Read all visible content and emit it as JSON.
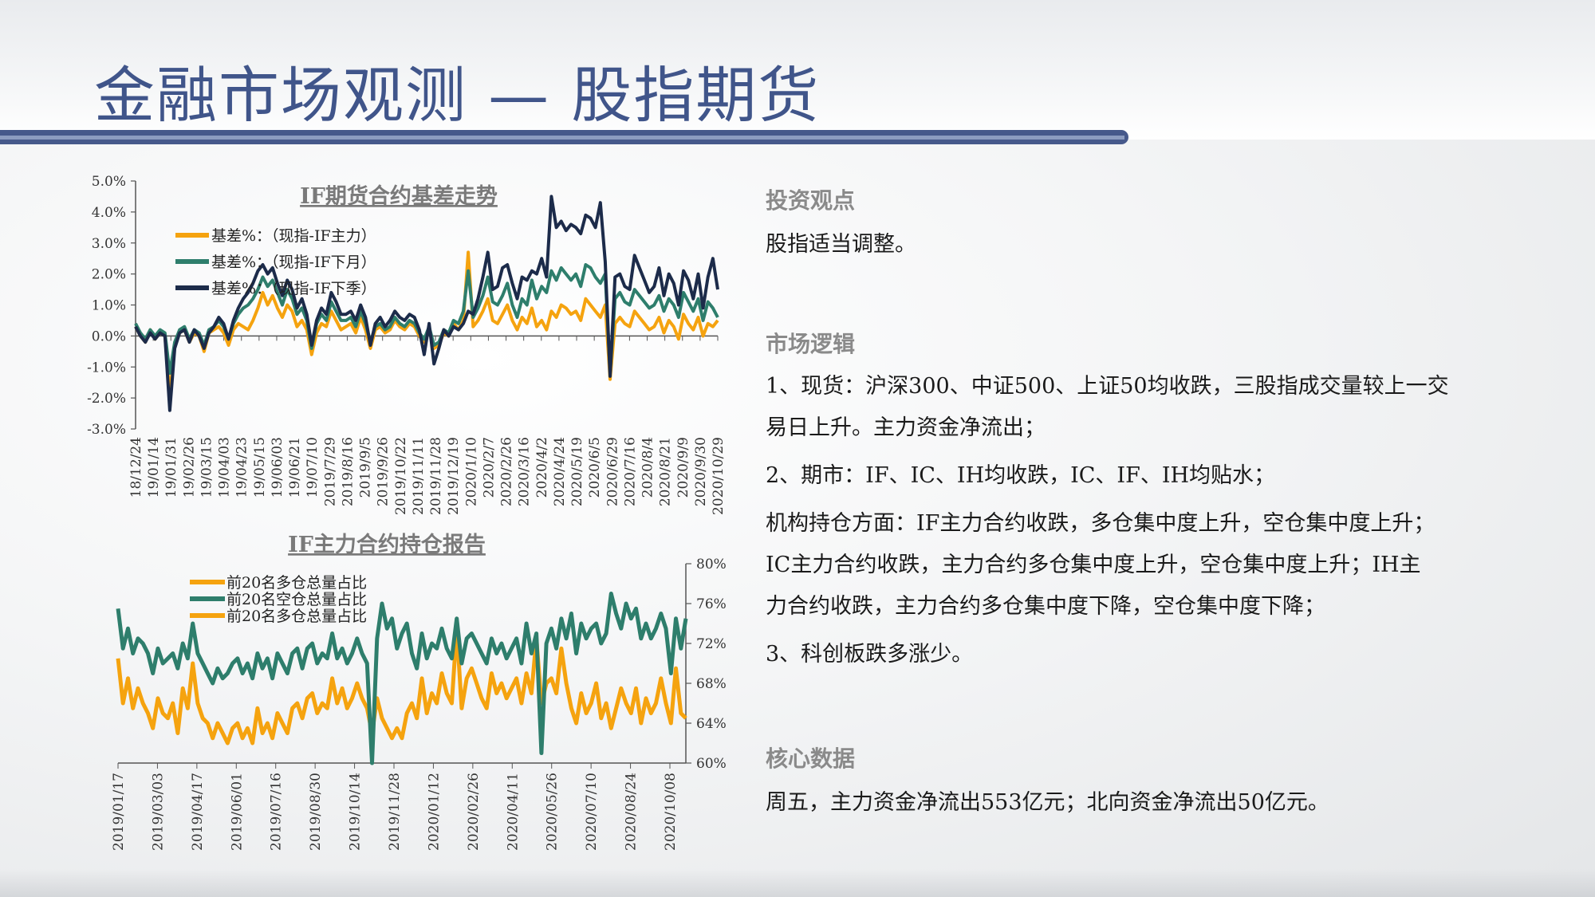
{
  "slide": {
    "title": "金融市场观测 — 股指期货"
  },
  "right": {
    "sections": [
      {
        "heading": "投资观点",
        "lines": [
          "股指适当调整。"
        ]
      },
      {
        "heading": "市场逻辑",
        "lines": [
          "1、现货：沪深300、中证500、上证50均收跌，三股指成交量较上一交",
          "易日上升。主力资金净流出；",
          "2、期市：IF、IC、IH均收跌，IC、IF、IH均贴水；",
          "机构持仓方面：IF主力合约收跌，多仓集中度上升，空仓集中度上升；",
          "IC主力合约收跌，主力合约多仓集中度上升，空仓集中度上升；IH主",
          "力合约收跌，主力合约多仓集中度下降，空仓集中度下降；",
          "3、科创板跌多涨少。"
        ]
      },
      {
        "heading": "核心数据",
        "lines": [
          "周五，主力资金净流出553亿元；北向资金净流出50亿元。"
        ]
      }
    ]
  },
  "colors": {
    "orange": "#f5a30f",
    "green": "#2e7e6c",
    "navy": "#1c2b4a",
    "title_blue": "#40558a"
  },
  "chart_data": [
    {
      "type": "line",
      "title": "IF期货合约基差走势",
      "y_ticks": [
        "5.0%",
        "4.0%",
        "3.0%",
        "2.0%",
        "1.0%",
        "0.0%",
        "-1.0%",
        "-2.0%",
        "-3.0%"
      ],
      "ylim": [
        -3,
        5
      ],
      "x_ticks": [
        "18/12/24",
        "19/01/14",
        "19/01/31",
        "19/02/26",
        "19/03/15",
        "19/04/03",
        "19/04/23",
        "19/05/15",
        "19/06/03",
        "19/06/21",
        "19/07/10",
        "2019/7/29",
        "2019/8/16",
        "2019/9/5",
        "2019/9/26",
        "2019/10/22",
        "2019/11/11",
        "2019/11/28",
        "2019/12/19",
        "2020/1/10",
        "2020/2/7",
        "2020/2/26",
        "2020/3/16",
        "2020/4/2",
        "2020/4/24",
        "2020/5/19",
        "2020/6/5",
        "2020/6/29",
        "2020/7/16",
        "2020/8/4",
        "2020/8/21",
        "2020/9/9",
        "2020/9/30",
        "2020/10/29"
      ],
      "series": [
        {
          "name": "基差%：（现指-IF主力）",
          "color": "#f5a30f",
          "values": [
            0.3,
            0.0,
            -0.2,
            0.2,
            -0.1,
            0.1,
            0.0,
            -1.9,
            -0.3,
            0.1,
            0.2,
            -0.2,
            0.1,
            0.0,
            -0.5,
            0.1,
            0.2,
            0.3,
            0.1,
            -0.3,
            0.2,
            0.4,
            0.3,
            0.2,
            0.5,
            0.9,
            1.4,
            1.0,
            1.3,
            0.9,
            0.6,
            1.0,
            0.8,
            0.3,
            0.5,
            0.2,
            -0.6,
            0.1,
            0.4,
            0.3,
            0.8,
            0.5,
            0.2,
            0.3,
            0.4,
            0.1,
            0.6,
            0.2,
            -0.4,
            0.2,
            0.3,
            0.1,
            0.2,
            0.5,
            0.3,
            0.2,
            0.4,
            0.3,
            0.0,
            -0.2,
            0.2,
            -0.4,
            -0.3,
            0.1,
            0.0,
            0.4,
            0.2,
            0.5,
            2.7,
            0.3,
            0.5,
            0.8,
            1.2,
            0.5,
            0.4,
            0.7,
            1.0,
            0.5,
            0.2,
            0.6,
            0.4,
            0.9,
            0.3,
            0.5,
            0.2,
            0.8,
            0.6,
            1.0,
            0.9,
            0.7,
            0.8,
            0.5,
            1.2,
            1.0,
            0.8,
            0.6,
            1.0,
            -1.4,
            0.4,
            0.6,
            0.4,
            0.3,
            0.8,
            0.6,
            0.4,
            0.2,
            0.3,
            0.6,
            0.1,
            0.5,
            0.3,
            -0.1,
            0.7,
            0.4,
            0.2,
            0.6,
            0.0,
            0.4,
            0.3,
            0.5
          ]
        },
        {
          "name": "基差%：（现指-IF下月）",
          "color": "#2e7e6c",
          "values": [
            0.4,
            0.1,
            -0.1,
            0.2,
            0.0,
            0.2,
            0.1,
            -1.2,
            -0.2,
            0.2,
            0.3,
            -0.1,
            0.2,
            0.1,
            -0.3,
            0.2,
            0.3,
            0.5,
            0.3,
            -0.1,
            0.4,
            0.7,
            0.9,
            1.0,
            1.2,
            1.5,
            1.9,
            1.6,
            1.8,
            1.4,
            1.0,
            1.5,
            1.2,
            0.7,
            0.9,
            0.5,
            -0.4,
            0.4,
            0.7,
            0.5,
            1.1,
            0.8,
            0.5,
            0.5,
            0.6,
            0.3,
            0.8,
            0.4,
            -0.2,
            0.3,
            0.4,
            0.2,
            0.3,
            0.6,
            0.4,
            0.3,
            0.5,
            0.4,
            0.1,
            -0.1,
            0.3,
            -0.3,
            -0.2,
            0.2,
            0.1,
            0.5,
            0.4,
            0.8,
            2.1,
            0.6,
            0.9,
            1.3,
            1.9,
            1.1,
            1.0,
            1.3,
            1.7,
            1.0,
            0.6,
            1.2,
            1.0,
            1.8,
            1.2,
            1.6,
            1.4,
            2.1,
            1.8,
            2.2,
            2.0,
            1.8,
            2.0,
            1.6,
            2.3,
            2.2,
            1.9,
            1.7,
            2.0,
            -1.2,
            1.2,
            1.4,
            1.1,
            1.0,
            1.5,
            1.3,
            1.1,
            0.9,
            1.0,
            1.3,
            0.8,
            1.2,
            1.0,
            0.6,
            1.4,
            1.1,
            0.8,
            1.2,
            0.5,
            1.1,
            0.9,
            0.6
          ]
        },
        {
          "name": "基差%：（现指-IF下季）",
          "color": "#1c2b4a",
          "values": [
            0.3,
            0.0,
            -0.2,
            0.1,
            -0.1,
            0.1,
            0.0,
            -2.4,
            -0.4,
            0.1,
            0.2,
            -0.2,
            0.2,
            0.0,
            -0.4,
            0.1,
            0.3,
            0.6,
            0.4,
            -0.1,
            0.5,
            0.9,
            1.2,
            1.4,
            1.7,
            2.1,
            2.3,
            2.0,
            2.2,
            1.7,
            1.3,
            1.8,
            1.5,
            0.9,
            1.2,
            0.7,
            -0.3,
            0.5,
            0.9,
            0.7,
            1.4,
            1.1,
            0.7,
            0.7,
            0.8,
            0.5,
            1.0,
            0.6,
            -0.3,
            0.4,
            0.6,
            0.3,
            0.5,
            0.8,
            0.6,
            0.5,
            0.7,
            0.6,
            0.2,
            -0.6,
            0.4,
            -0.9,
            -0.4,
            0.2,
            0.0,
            0.3,
            0.2,
            0.4,
            0.8,
            0.7,
            1.2,
            1.9,
            2.7,
            1.5,
            1.6,
            2.2,
            2.3,
            1.7,
            1.2,
            1.9,
            1.8,
            2.1,
            2.0,
            2.5,
            1.9,
            4.5,
            3.5,
            3.7,
            3.4,
            3.6,
            3.5,
            3.3,
            3.9,
            3.8,
            3.5,
            4.3,
            2.4,
            -1.3,
            1.9,
            2.0,
            1.6,
            1.5,
            2.6,
            2.2,
            1.8,
            1.4,
            1.6,
            2.2,
            1.3,
            2.0,
            1.7,
            1.0,
            2.1,
            1.8,
            1.2,
            2.0,
            0.9,
            1.9,
            2.5,
            1.5
          ]
        }
      ],
      "legend_position": "top-left"
    },
    {
      "type": "line",
      "title": "IF主力合约持仓报告",
      "y_ticks": [
        "80%",
        "76%",
        "72%",
        "68%",
        "64%",
        "60%"
      ],
      "ylim": [
        60,
        80
      ],
      "y_axis_side": "right",
      "x_ticks": [
        "2019/01/17",
        "2019/03/03",
        "2019/04/17",
        "2019/06/01",
        "2019/07/16",
        "2019/08/30",
        "2019/10/14",
        "2019/11/28",
        "2020/01/12",
        "2020/02/26",
        "2020/04/11",
        "2020/05/26",
        "2020/07/10",
        "2020/08/24",
        "2020/10/08"
      ],
      "series": [
        {
          "name": "前20名多仓总量占比",
          "color": "#f5a30f",
          "values": [
            70.5,
            66.0,
            68.5,
            65.5,
            67.5,
            66.0,
            65.0,
            63.5,
            66.5,
            65.0,
            64.5,
            66.0,
            63.0,
            67.5,
            65.5,
            70.0,
            66.0,
            64.5,
            64.0,
            62.5,
            64.0,
            63.0,
            62.0,
            63.5,
            64.0,
            62.5,
            63.5,
            62.0,
            65.5,
            63.0,
            64.0,
            62.5,
            65.0,
            64.0,
            63.0,
            65.5,
            66.0,
            64.5,
            66.5,
            67.0,
            65.0,
            66.0,
            65.5,
            68.5,
            66.0,
            67.5,
            65.5,
            66.5,
            68.0,
            66.5,
            65.5,
            63.0,
            66.5,
            64.5,
            63.5,
            62.5,
            63.5,
            62.5,
            65.0,
            66.0,
            64.5,
            68.5,
            65.0,
            67.0,
            66.0,
            69.0,
            67.0,
            66.0,
            73.5,
            65.5,
            68.5,
            69.5,
            68.0,
            66.5,
            65.5,
            69.0,
            67.0,
            68.0,
            66.5,
            67.5,
            68.5,
            66.0,
            69.0,
            67.0,
            72.5,
            66.0,
            68.0,
            68.5,
            67.0,
            71.5,
            68.0,
            65.5,
            64.0,
            67.0,
            65.0,
            66.0,
            68.0,
            64.5,
            66.0,
            63.5,
            65.5,
            67.5,
            66.0,
            65.0,
            67.5,
            64.0,
            66.5,
            65.0,
            66.0,
            68.5,
            66.0,
            64.0,
            69.5,
            65.0,
            64.5
          ]
        },
        {
          "name": "前20名空仓总量占比",
          "color": "#2e7e6c",
          "values": [
            75.5,
            71.5,
            73.5,
            71.0,
            72.5,
            72.0,
            71.0,
            69.0,
            71.5,
            70.0,
            70.5,
            71.0,
            69.5,
            72.0,
            70.5,
            74.0,
            71.0,
            70.0,
            69.0,
            68.0,
            69.5,
            68.5,
            69.0,
            70.0,
            70.5,
            69.0,
            70.0,
            68.5,
            71.0,
            69.5,
            70.5,
            68.5,
            71.0,
            70.0,
            69.0,
            71.0,
            71.5,
            69.5,
            71.5,
            72.0,
            70.0,
            71.0,
            70.5,
            73.0,
            70.5,
            71.5,
            70.0,
            71.0,
            72.5,
            71.0,
            70.0,
            60.0,
            72.5,
            76.0,
            73.5,
            74.5,
            71.5,
            73.0,
            74.0,
            71.0,
            69.5,
            73.0,
            70.5,
            72.0,
            71.5,
            73.5,
            71.5,
            70.5,
            74.5,
            70.0,
            72.5,
            73.0,
            72.0,
            71.0,
            70.0,
            72.5,
            71.0,
            72.0,
            70.5,
            71.5,
            72.5,
            70.0,
            74.0,
            71.0,
            73.0,
            61.0,
            72.0,
            73.5,
            71.5,
            74.5,
            72.5,
            75.0,
            71.0,
            74.0,
            72.5,
            73.5,
            74.0,
            72.0,
            73.0,
            77.0,
            75.0,
            73.5,
            76.0,
            74.5,
            75.5,
            72.5,
            74.0,
            72.5,
            73.5,
            75.0,
            73.5,
            69.0,
            74.5,
            71.5,
            74.5
          ]
        },
        {
          "name": "前20名多仓总量占比",
          "color": "#f5a30f",
          "values": []
        }
      ],
      "legend_position": "top-left"
    }
  ]
}
